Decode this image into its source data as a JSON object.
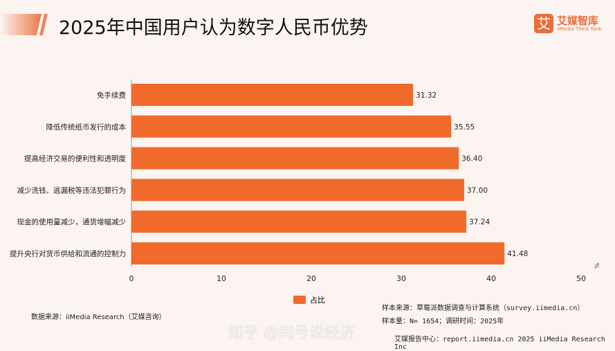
{
  "header": {
    "title": "2025年中国用户认为数字人民币优势",
    "logo_mark": "艾",
    "logo_cn": "艾媒智库",
    "logo_en": "iiMedia Think Tank"
  },
  "chart_data": {
    "type": "bar",
    "orientation": "horizontal",
    "categories": [
      "免手续费",
      "降低传统纸币发行的成本",
      "提高经济交易的便利性和透明度",
      "减少洗钱、逃漏税等违法犯罪行为",
      "现金的使用量减少，通货增幅减少",
      "提升央行对货币供给和流通的控制力"
    ],
    "series": [
      {
        "name": "占比",
        "values": [
          31.32,
          35.55,
          36.4,
          37.0,
          37.24,
          41.48
        ]
      }
    ],
    "value_labels": [
      "31.32",
      "35.55",
      "36.40",
      "37.00",
      "37.24",
      "41.48"
    ],
    "xlim": [
      0,
      50
    ],
    "xticks": [
      "0",
      "10",
      "20",
      "30",
      "40",
      "50"
    ],
    "xunit": "%",
    "grid": false,
    "legend": "bottom-center",
    "color": "#f06a2c"
  },
  "footer": {
    "source": "数据来源：iiMedia Research（艾媒咨询）",
    "sample_source": "样本来源：草莓派数据调查与计算系统（survey.iimedia.cn）",
    "sample_size": "样本量：N= 1654；调研时间：2025年",
    "watermark": "知乎 @闫号说经济",
    "center": "艾媒报告中心：report.iimedia.cn   2025 iiMedia Research Inc"
  }
}
